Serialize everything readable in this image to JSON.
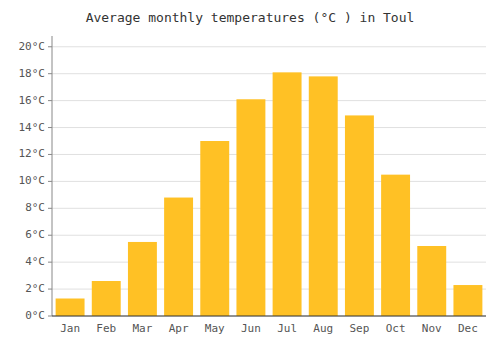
{
  "chart_data": {
    "type": "bar",
    "title": "Average monthly temperatures (°C ) in Toul",
    "categories": [
      "Jan",
      "Feb",
      "Mar",
      "Apr",
      "May",
      "Jun",
      "Jul",
      "Aug",
      "Sep",
      "Oct",
      "Nov",
      "Dec"
    ],
    "values": [
      1.3,
      2.6,
      5.5,
      8.8,
      13.0,
      16.1,
      18.1,
      17.8,
      14.9,
      10.5,
      5.2,
      2.3
    ],
    "color": "#FFC125",
    "ylim": [
      0,
      20.8
    ],
    "yticks": [
      {
        "value": 0,
        "label": "0°C"
      },
      {
        "value": 2,
        "label": "2°C"
      },
      {
        "value": 4,
        "label": "4°C"
      },
      {
        "value": 6,
        "label": "6°C"
      },
      {
        "value": 8,
        "label": "8°C"
      },
      {
        "value": 10,
        "label": "10°C"
      },
      {
        "value": 12,
        "label": "12°C"
      },
      {
        "value": 14,
        "label": "14°C"
      },
      {
        "value": 16,
        "label": "16°C"
      },
      {
        "value": 18,
        "label": "18°C"
      },
      {
        "value": 20,
        "label": "20°C"
      }
    ],
    "grid": true
  }
}
